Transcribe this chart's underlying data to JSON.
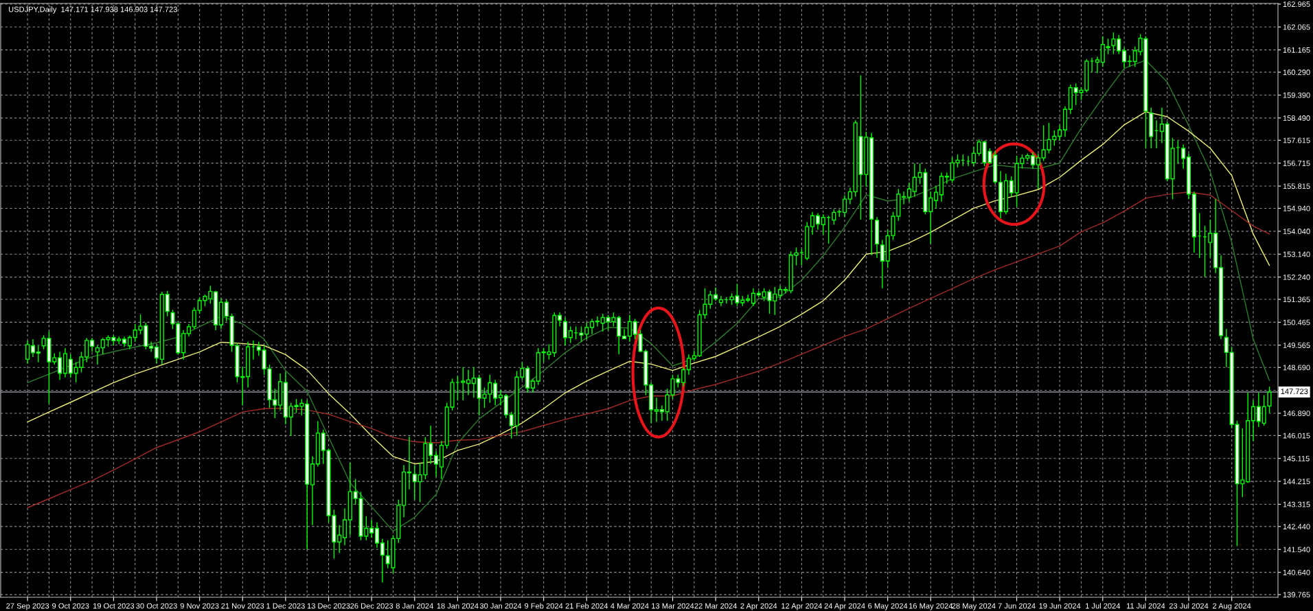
{
  "chart_data": {
    "type": "candlestick",
    "title": "USDJPY,Daily  147.171 147.938 146.903 147.723",
    "color": "#00ff00",
    "categories": [
      "27 Sep 2023",
      null,
      null,
      null,
      null,
      null,
      null,
      null,
      "9 Oct 2023",
      null,
      null,
      null,
      null,
      null,
      null,
      null,
      "19 Oct 2023",
      null,
      null,
      null,
      null,
      null,
      null,
      null,
      "30 Oct 2023",
      null,
      null,
      null,
      null,
      null,
      null,
      null,
      "9 Nov 2023",
      null,
      null,
      null,
      null,
      null,
      null,
      null,
      "21 Nov 2023",
      null,
      null,
      null,
      null,
      null,
      null,
      null,
      "1 Dec 2023",
      null,
      null,
      null,
      null,
      null,
      null,
      null,
      "13 Dec 2023",
      null,
      null,
      null,
      null,
      null,
      null,
      null,
      "26 Dec 2023",
      null,
      null,
      null,
      null,
      null,
      null,
      null,
      "8 Jan 2024",
      null,
      null,
      null,
      null,
      null,
      null,
      null,
      "18 Jan 2024",
      null,
      null,
      null,
      null,
      null,
      null,
      null,
      "30 Jan 2024",
      null,
      null,
      null,
      null,
      null,
      null,
      null,
      "9 Feb 2024",
      null,
      null,
      null,
      null,
      null,
      null,
      null,
      "21 Feb 2024",
      null,
      null,
      null,
      null,
      null,
      null,
      null,
      "4 Mar 2024",
      null,
      null,
      null,
      null,
      null,
      null,
      null,
      "13 Mar 2024",
      null,
      null,
      null,
      null,
      null,
      null,
      null,
      "22 Mar 2024",
      null,
      null,
      null,
      null,
      null,
      null,
      null,
      "2 Apr 2024",
      null,
      null,
      null,
      null,
      null,
      null,
      null,
      "12 Apr 2024",
      null,
      null,
      null,
      null,
      null,
      null,
      null,
      "24 Apr 2024",
      null,
      null,
      null,
      null,
      null,
      null,
      null,
      "6 May 2024",
      null,
      null,
      null,
      null,
      null,
      null,
      null,
      "16 May 2024",
      null,
      null,
      null,
      null,
      null,
      null,
      null,
      "28 May 2024",
      null,
      null,
      null,
      null,
      null,
      null,
      null,
      "7 Jun 2024",
      null,
      null,
      null,
      null,
      null,
      null,
      null,
      "19 Jun 2024",
      null,
      null,
      null,
      null,
      null,
      null,
      null,
      "1 Jul 2024",
      null,
      null,
      null,
      null,
      null,
      null,
      null,
      "11 Jul 2024",
      null,
      null,
      null,
      null,
      null,
      null,
      null,
      "23 Jul 2024",
      null,
      null,
      null,
      null,
      null,
      null,
      null,
      "2 Aug 2024",
      null,
      null,
      null,
      null,
      null,
      null,
      null
    ],
    "ohlc": [
      [
        149.01,
        149.75,
        148.85,
        149.59
      ],
      [
        149.54,
        149.8,
        149.1,
        149.27
      ],
      [
        149.3,
        149.55,
        148.9,
        149.25
      ],
      [
        149.54,
        149.95,
        149.4,
        149.83
      ],
      [
        149.83,
        150.1,
        147.27,
        148.91
      ],
      [
        148.91,
        149.25,
        148.8,
        149.07
      ],
      [
        149.07,
        149.3,
        148.2,
        148.46
      ],
      [
        148.46,
        149.45,
        148.3,
        149.23
      ],
      [
        149.01,
        149.2,
        148.3,
        148.46
      ],
      [
        148.46,
        148.9,
        148.1,
        148.69
      ],
      [
        148.69,
        149.3,
        148.5,
        149.1
      ],
      [
        149.1,
        149.85,
        148.9,
        149.75
      ],
      [
        149.75,
        149.85,
        149.3,
        149.52
      ],
      [
        149.3,
        149.55,
        148.8,
        149.46
      ],
      [
        149.46,
        149.85,
        149.2,
        149.78
      ],
      [
        149.78,
        149.95,
        149.5,
        149.86
      ],
      [
        149.86,
        149.95,
        149.55,
        149.74
      ],
      [
        149.74,
        149.9,
        149.6,
        149.8
      ],
      [
        149.8,
        149.9,
        149.5,
        149.64
      ],
      [
        149.54,
        149.95,
        149.4,
        149.87
      ],
      [
        149.87,
        150.4,
        149.7,
        150.16
      ],
      [
        150.16,
        150.77,
        150.0,
        150.31
      ],
      [
        150.33,
        150.45,
        149.4,
        149.52
      ],
      [
        149.52,
        149.7,
        149.3,
        149.45
      ],
      [
        149.49,
        149.6,
        148.85,
        149.06
      ],
      [
        149.01,
        151.66,
        148.8,
        151.56
      ],
      [
        151.56,
        151.7,
        150.7,
        150.89
      ],
      [
        150.84,
        150.95,
        150.2,
        150.4
      ],
      [
        150.4,
        150.5,
        149.2,
        149.27
      ],
      [
        149.27,
        150.15,
        149.0,
        150.02
      ],
      [
        150.02,
        150.4,
        149.9,
        150.29
      ],
      [
        150.29,
        151.05,
        150.2,
        150.93
      ],
      [
        150.93,
        151.45,
        150.8,
        151.32
      ],
      [
        151.32,
        151.55,
        151.1,
        151.48
      ],
      [
        151.39,
        151.9,
        151.2,
        151.68
      ],
      [
        151.66,
        151.7,
        150.15,
        150.36
      ],
      [
        150.36,
        151.4,
        150.2,
        151.25
      ],
      [
        151.25,
        151.35,
        150.5,
        150.7
      ],
      [
        150.7,
        150.8,
        149.3,
        149.56
      ],
      [
        149.54,
        149.65,
        148.1,
        148.33
      ],
      [
        148.33,
        148.7,
        147.2,
        148.3
      ],
      [
        148.33,
        149.7,
        147.9,
        149.5
      ],
      [
        149.5,
        149.75,
        149.0,
        149.5
      ],
      [
        149.5,
        149.7,
        149.15,
        149.37
      ],
      [
        149.37,
        149.55,
        148.4,
        148.63
      ],
      [
        148.63,
        148.8,
        147.1,
        147.42
      ],
      [
        147.42,
        147.85,
        146.7,
        147.21
      ],
      [
        147.21,
        148.45,
        147.0,
        148.13
      ],
      [
        148.1,
        148.5,
        146.45,
        146.74
      ],
      [
        146.74,
        147.3,
        146.0,
        147.16
      ],
      [
        147.2,
        147.45,
        146.9,
        147.15
      ],
      [
        147.16,
        147.45,
        146.8,
        147.28
      ],
      [
        147.25,
        147.4,
        141.54,
        144.1
      ],
      [
        144.08,
        145.2,
        142.5,
        144.9
      ],
      [
        144.9,
        146.58,
        144.8,
        146.11
      ],
      [
        146.11,
        146.25,
        144.9,
        145.43
      ],
      [
        145.43,
        145.5,
        142.6,
        142.87
      ],
      [
        142.87,
        143.1,
        141.18,
        141.83
      ],
      [
        141.83,
        142.5,
        141.4,
        142.1
      ],
      [
        142.0,
        143.15,
        141.7,
        142.7
      ],
      [
        142.7,
        144.95,
        142.1,
        143.81
      ],
      [
        143.81,
        144.3,
        143.3,
        143.54
      ],
      [
        143.54,
        143.8,
        141.9,
        142.06
      ],
      [
        142.06,
        142.85,
        141.9,
        142.37
      ],
      [
        142.37,
        142.7,
        142.0,
        142.19
      ],
      [
        142.37,
        142.6,
        141.6,
        141.79
      ],
      [
        141.79,
        141.95,
        140.24,
        141.32
      ],
      [
        141.29,
        141.9,
        140.8,
        140.98
      ],
      [
        140.82,
        142.1,
        140.6,
        141.97
      ],
      [
        141.97,
        143.5,
        141.8,
        143.27
      ],
      [
        143.27,
        144.85,
        142.8,
        144.58
      ],
      [
        144.58,
        145.98,
        143.9,
        144.55
      ],
      [
        144.49,
        144.85,
        143.5,
        144.2
      ],
      [
        144.2,
        144.95,
        143.4,
        144.47
      ],
      [
        144.47,
        145.95,
        144.3,
        145.7
      ],
      [
        145.7,
        146.4,
        144.9,
        145.23
      ],
      [
        145.23,
        145.4,
        144.4,
        144.89
      ],
      [
        144.78,
        145.8,
        144.3,
        145.63
      ],
      [
        145.63,
        147.3,
        145.5,
        147.13
      ],
      [
        147.13,
        148.25,
        147.0,
        148.1
      ],
      [
        148.1,
        148.35,
        147.4,
        148.1
      ],
      [
        148.1,
        148.7,
        147.4,
        148.15
      ],
      [
        148.06,
        148.6,
        147.6,
        148.2
      ],
      [
        148.06,
        148.7,
        147.5,
        148.27
      ],
      [
        148.27,
        148.4,
        146.8,
        147.48
      ],
      [
        147.48,
        147.9,
        147.1,
        147.64
      ],
      [
        147.64,
        148.4,
        147.3,
        148.09
      ],
      [
        148.06,
        148.2,
        147.2,
        147.48
      ],
      [
        147.5,
        147.8,
        147.2,
        147.6
      ],
      [
        147.58,
        147.65,
        146.7,
        146.83
      ],
      [
        146.83,
        146.95,
        145.9,
        146.4
      ],
      [
        146.4,
        148.55,
        146.0,
        148.31
      ],
      [
        148.31,
        148.9,
        148.2,
        148.65
      ],
      [
        148.65,
        148.75,
        147.7,
        147.88
      ],
      [
        147.88,
        148.25,
        147.7,
        148.15
      ],
      [
        148.15,
        149.45,
        148.0,
        149.27
      ],
      [
        149.27,
        149.45,
        148.9,
        149.3
      ],
      [
        149.2,
        149.6,
        149.0,
        149.3
      ],
      [
        149.27,
        150.85,
        149.1,
        150.73
      ],
      [
        150.73,
        150.85,
        150.3,
        150.55
      ],
      [
        150.49,
        150.65,
        149.55,
        149.86
      ],
      [
        149.86,
        150.3,
        149.65,
        150.13
      ],
      [
        150.05,
        150.3,
        149.8,
        150.05
      ],
      [
        150.04,
        150.3,
        149.7,
        149.96
      ],
      [
        150.0,
        150.45,
        149.8,
        150.26
      ],
      [
        150.26,
        150.6,
        150.0,
        150.49
      ],
      [
        150.49,
        150.7,
        150.3,
        150.51
      ],
      [
        150.43,
        150.8,
        150.1,
        150.65
      ],
      [
        150.65,
        150.75,
        150.15,
        150.49
      ],
      [
        150.49,
        150.85,
        150.3,
        150.65
      ],
      [
        150.65,
        150.72,
        149.2,
        149.92
      ],
      [
        149.92,
        150.2,
        149.8,
        149.82
      ],
      [
        149.92,
        150.75,
        149.7,
        150.49
      ],
      [
        150.49,
        150.6,
        149.8,
        149.99
      ],
      [
        150.0,
        150.15,
        149.3,
        149.32
      ],
      [
        149.32,
        149.4,
        147.6,
        148.0
      ],
      [
        148.0,
        148.1,
        146.5,
        147.03
      ],
      [
        146.97,
        147.5,
        146.55,
        147.03
      ],
      [
        147.03,
        147.2,
        146.6,
        146.95
      ],
      [
        146.95,
        147.85,
        146.6,
        147.61
      ],
      [
        147.61,
        148.4,
        147.45,
        148.24
      ],
      [
        148.24,
        148.4,
        147.9,
        148.1
      ],
      [
        148.1,
        148.7,
        147.95,
        148.6
      ],
      [
        148.6,
        149.2,
        148.4,
        149.05
      ],
      [
        149.05,
        149.35,
        148.95,
        149.15
      ],
      [
        149.15,
        150.95,
        149.1,
        150.76
      ],
      [
        150.76,
        151.8,
        150.6,
        151.17
      ],
      [
        151.17,
        151.7,
        151.0,
        151.54
      ],
      [
        151.54,
        151.83,
        151.3,
        151.39
      ],
      [
        151.24,
        151.5,
        151.1,
        151.35
      ],
      [
        151.35,
        151.45,
        151.2,
        151.35
      ],
      [
        151.35,
        151.6,
        151.15,
        151.46
      ],
      [
        151.5,
        151.97,
        151.1,
        151.23
      ],
      [
        151.23,
        151.5,
        151.1,
        151.33
      ],
      [
        151.33,
        151.55,
        151.25,
        151.38
      ],
      [
        151.21,
        151.8,
        151.1,
        151.6
      ],
      [
        151.6,
        151.7,
        151.45,
        151.54
      ],
      [
        151.45,
        151.8,
        151.3,
        151.66
      ],
      [
        151.66,
        151.75,
        150.8,
        151.32
      ],
      [
        151.3,
        151.85,
        150.75,
        151.57
      ],
      [
        151.52,
        151.9,
        151.4,
        151.75
      ],
      [
        151.72,
        151.85,
        151.6,
        151.75
      ],
      [
        151.7,
        153.25,
        151.6,
        153.1
      ],
      [
        153.1,
        153.4,
        152.7,
        153.19
      ],
      [
        153.2,
        153.35,
        152.7,
        153.2
      ],
      [
        152.98,
        154.4,
        152.9,
        154.22
      ],
      [
        154.22,
        154.8,
        153.9,
        154.65
      ],
      [
        154.65,
        154.75,
        154.1,
        154.33
      ],
      [
        154.3,
        154.7,
        153.9,
        154.58
      ],
      [
        154.58,
        154.65,
        153.55,
        154.58
      ],
      [
        154.48,
        154.9,
        154.3,
        154.78
      ],
      [
        154.8,
        154.9,
        154.6,
        154.81
      ],
      [
        154.78,
        155.45,
        154.6,
        155.3
      ],
      [
        155.3,
        155.75,
        155.1,
        155.59
      ],
      [
        155.59,
        158.4,
        155.4,
        158.3
      ],
      [
        157.76,
        160.16,
        154.5,
        156.27
      ],
      [
        156.27,
        157.95,
        155.8,
        157.73
      ],
      [
        157.71,
        157.9,
        153.1,
        154.51
      ],
      [
        154.47,
        154.6,
        153.0,
        153.54
      ],
      [
        153.5,
        153.7,
        151.8,
        152.87
      ],
      [
        152.87,
        154.1,
        152.6,
        153.86
      ],
      [
        153.87,
        154.8,
        153.7,
        154.63
      ],
      [
        154.63,
        155.7,
        154.45,
        155.5
      ],
      [
        155.4,
        155.6,
        155.1,
        155.38
      ],
      [
        155.38,
        155.95,
        155.2,
        155.7
      ],
      [
        155.6,
        156.7,
        155.4,
        156.16
      ],
      [
        156.16,
        156.7,
        155.9,
        156.34
      ],
      [
        156.34,
        156.5,
        154.7,
        154.81
      ],
      [
        154.81,
        155.6,
        153.55,
        155.35
      ],
      [
        155.25,
        155.8,
        154.95,
        155.57
      ],
      [
        155.47,
        156.35,
        155.2,
        156.2
      ],
      [
        156.2,
        156.35,
        155.9,
        156.17
      ],
      [
        156.06,
        156.95,
        155.95,
        156.73
      ],
      [
        156.73,
        157.05,
        156.55,
        156.83
      ],
      [
        156.83,
        157.05,
        156.6,
        156.83
      ],
      [
        156.79,
        157.0,
        156.6,
        156.79
      ],
      [
        156.74,
        157.35,
        156.6,
        157.1
      ],
      [
        157.1,
        157.65,
        157.0,
        157.55
      ],
      [
        157.55,
        157.6,
        156.6,
        156.74
      ],
      [
        157.18,
        157.3,
        156.7,
        156.74
      ],
      [
        157.03,
        157.2,
        155.9,
        155.98
      ],
      [
        155.96,
        156.4,
        154.55,
        154.81
      ],
      [
        154.81,
        156.3,
        154.7,
        156.02
      ],
      [
        156.02,
        156.2,
        155.4,
        155.55
      ],
      [
        155.55,
        157.0,
        155.0,
        156.7
      ],
      [
        156.7,
        157.05,
        156.5,
        156.91
      ],
      [
        156.91,
        157.1,
        156.8,
        157.01
      ],
      [
        157.01,
        157.15,
        156.5,
        156.65
      ],
      [
        156.65,
        157.1,
        155.7,
        156.92
      ],
      [
        156.92,
        158.2,
        156.8,
        157.24
      ],
      [
        157.24,
        158.3,
        157.1,
        157.64
      ],
      [
        157.64,
        158.0,
        157.4,
        157.77
      ],
      [
        157.77,
        158.2,
        157.6,
        158.02
      ],
      [
        158.02,
        158.95,
        157.75,
        158.83
      ],
      [
        158.83,
        159.8,
        158.65,
        159.68
      ],
      [
        159.68,
        159.85,
        159.0,
        159.49
      ],
      [
        159.49,
        159.7,
        159.2,
        159.58
      ],
      [
        159.58,
        160.8,
        159.5,
        160.72
      ],
      [
        160.72,
        160.85,
        160.3,
        160.72
      ],
      [
        160.68,
        160.9,
        160.25,
        160.77
      ],
      [
        160.68,
        161.7,
        160.5,
        161.38
      ],
      [
        161.25,
        161.6,
        161.0,
        161.29
      ],
      [
        161.33,
        161.85,
        161.0,
        161.59
      ],
      [
        161.59,
        161.75,
        161.0,
        161.13
      ],
      [
        161.13,
        161.25,
        160.45,
        160.7
      ],
      [
        160.71,
        160.95,
        160.5,
        160.72
      ],
      [
        160.71,
        161.3,
        160.5,
        161.13
      ],
      [
        161.1,
        161.78,
        160.95,
        161.62
      ],
      [
        161.6,
        161.7,
        157.3,
        158.76
      ],
      [
        158.68,
        158.9,
        157.3,
        157.76
      ],
      [
        157.99,
        158.4,
        157.3,
        157.99
      ],
      [
        157.96,
        158.9,
        157.5,
        158.25
      ],
      [
        158.25,
        158.35,
        156.0,
        156.1
      ],
      [
        156.1,
        157.7,
        155.3,
        157.3
      ],
      [
        157.33,
        157.6,
        156.7,
        157.33
      ],
      [
        157.3,
        157.45,
        156.5,
        156.9
      ],
      [
        156.96,
        157.1,
        155.3,
        155.5
      ],
      [
        155.5,
        155.6,
        153.2,
        153.82
      ],
      [
        153.85,
        154.75,
        153.0,
        153.85
      ],
      [
        153.82,
        154.25,
        152.25,
        153.82
      ],
      [
        153.6,
        154.5,
        153.0,
        153.96
      ],
      [
        153.96,
        155.3,
        152.4,
        152.61
      ],
      [
        152.61,
        153.1,
        149.8,
        149.94
      ],
      [
        149.87,
        150.2,
        148.7,
        149.28
      ],
      [
        149.28,
        149.5,
        146.3,
        146.45
      ],
      [
        146.45,
        146.6,
        141.67,
        144.12
      ],
      [
        144.12,
        146.3,
        143.6,
        144.27
      ],
      [
        144.2,
        147.7,
        144.15,
        146.6
      ],
      [
        146.6,
        147.4,
        145.8,
        147.15
      ],
      [
        147.15,
        147.7,
        146.35,
        146.57
      ],
      [
        146.5,
        147.6,
        146.4,
        147.15
      ],
      [
        147.171,
        147.938,
        146.903,
        147.723
      ]
    ],
    "series": [
      {
        "type": "line",
        "color": "#2f7d2f",
        "values": [
          148.09,
          null,
          null,
          null,
          148.43,
          null,
          null,
          null,
          148.77,
          null,
          null,
          null,
          149.11,
          null,
          null,
          null,
          149.31,
          null,
          null,
          null,
          149.49,
          null,
          null,
          null,
          149.66,
          null,
          null,
          null,
          149.88,
          null,
          null,
          null,
          150.29,
          null,
          null,
          null,
          150.7,
          null,
          null,
          null,
          150.4,
          null,
          null,
          null,
          149.8,
          null,
          null,
          null,
          148.56,
          null,
          null,
          null,
          147.75,
          null,
          null,
          null,
          145.95,
          null,
          null,
          null,
          144.15,
          null,
          null,
          null,
          143.21,
          null,
          null,
          null,
          142.26,
          null,
          null,
          null,
          142.8,
          null,
          null,
          null,
          143.7,
          null,
          null,
          null,
          145.7,
          null,
          null,
          null,
          146.67,
          null,
          null,
          null,
          147.29,
          null,
          null,
          null,
          147.91,
          null,
          null,
          null,
          148.56,
          null,
          null,
          null,
          149.27,
          null,
          null,
          null,
          149.85,
          null,
          null,
          null,
          150.26,
          null,
          null,
          null,
          150.24,
          null,
          null,
          null,
          149.63,
          null,
          null,
          null,
          148.75,
          null,
          null,
          null,
          149.04,
          null,
          null,
          null,
          149.69,
          null,
          null,
          null,
          150.42,
          null,
          null,
          null,
          151.39,
          null,
          null,
          null,
          151.46,
          null,
          null,
          null,
          152.12,
          null,
          null,
          null,
          153.08,
          null,
          null,
          null,
          154.2,
          null,
          null,
          null,
          155.47,
          null,
          null,
          null,
          155.23,
          null,
          null,
          null,
          155.34,
          null,
          null,
          null,
          155.69,
          null,
          null,
          null,
          156.1,
          null,
          null,
          null,
          156.38,
          null,
          null,
          null,
          156.65,
          null,
          null,
          null,
          156.55,
          null,
          null,
          null,
          156.5,
          null,
          null,
          null,
          156.72,
          null,
          null,
          null,
          158.09,
          null,
          null,
          null,
          159.3,
          null,
          null,
          null,
          160.44,
          null,
          null,
          null,
          160.76,
          null,
          null,
          null,
          159.9,
          null,
          null,
          null,
          158.19,
          null,
          null,
          null,
          156.38,
          null,
          null,
          null,
          153.6,
          null,
          null,
          null,
          149.8,
          null,
          null,
          148.18
        ]
      },
      {
        "type": "line",
        "color": "#f0f07a",
        "values": [
          146.55,
          null,
          null,
          null,
          146.94,
          null,
          null,
          null,
          147.32,
          null,
          null,
          null,
          147.71,
          null,
          null,
          null,
          148.09,
          null,
          null,
          null,
          148.43,
          null,
          null,
          null,
          148.72,
          null,
          null,
          null,
          149.01,
          null,
          null,
          null,
          149.3,
          null,
          null,
          null,
          149.68,
          null,
          null,
          null,
          149.63,
          null,
          null,
          null,
          149.55,
          null,
          null,
          null,
          149.19,
          null,
          null,
          null,
          148.59,
          null,
          null,
          null,
          147.66,
          null,
          null,
          null,
          146.87,
          null,
          null,
          null,
          145.99,
          null,
          null,
          null,
          145.19,
          null,
          null,
          null,
          144.9,
          null,
          null,
          null,
          145.0,
          null,
          null,
          null,
          145.43,
          null,
          null,
          null,
          145.68,
          null,
          null,
          null,
          146.07,
          null,
          null,
          null,
          146.51,
          null,
          null,
          null,
          147.07,
          null,
          null,
          null,
          147.69,
          null,
          null,
          null,
          148.15,
          null,
          null,
          null,
          148.55,
          null,
          null,
          null,
          148.93,
          null,
          null,
          null,
          148.82,
          null,
          null,
          null,
          148.57,
          null,
          null,
          null,
          148.86,
          null,
          null,
          null,
          149.12,
          null,
          null,
          null,
          149.5,
          null,
          null,
          null,
          149.89,
          null,
          null,
          null,
          150.3,
          null,
          null,
          null,
          150.78,
          null,
          null,
          null,
          151.31,
          null,
          null,
          null,
          152.12,
          null,
          null,
          null,
          153.14,
          null,
          null,
          null,
          153.25,
          null,
          null,
          null,
          153.59,
          null,
          null,
          null,
          154.0,
          null,
          null,
          null,
          154.47,
          null,
          null,
          null,
          154.94,
          null,
          null,
          null,
          155.24,
          null,
          null,
          null,
          155.44,
          null,
          null,
          null,
          155.68,
          null,
          null,
          null,
          156.16,
          null,
          null,
          null,
          156.83,
          null,
          null,
          null,
          157.45,
          null,
          null,
          null,
          158.22,
          null,
          null,
          null,
          158.73,
          null,
          null,
          null,
          158.54,
          null,
          null,
          null,
          157.97,
          null,
          null,
          null,
          157.3,
          null,
          null,
          null,
          156.23,
          null,
          null,
          null,
          153.93,
          null,
          null,
          152.7
        ]
      },
      {
        "type": "line",
        "color": "#a32a2a",
        "values": [
          143.18,
          null,
          null,
          null,
          143.53,
          null,
          null,
          null,
          143.89,
          null,
          null,
          null,
          144.24,
          null,
          null,
          null,
          144.66,
          null,
          null,
          null,
          145.1,
          null,
          null,
          null,
          145.54,
          null,
          null,
          null,
          145.85,
          null,
          null,
          null,
          146.16,
          null,
          null,
          null,
          146.55,
          null,
          null,
          null,
          146.94,
          null,
          null,
          null,
          147.07,
          null,
          null,
          null,
          147.09,
          null,
          null,
          null,
          147.02,
          null,
          null,
          null,
          146.85,
          null,
          null,
          null,
          146.56,
          null,
          null,
          null,
          146.29,
          null,
          null,
          null,
          145.94,
          null,
          null,
          null,
          145.77,
          null,
          null,
          null,
          145.73,
          null,
          null,
          null,
          145.83,
          null,
          null,
          null,
          145.86,
          null,
          null,
          null,
          146.02,
          null,
          null,
          null,
          146.17,
          null,
          null,
          null,
          146.41,
          null,
          null,
          null,
          146.65,
          null,
          null,
          null,
          146.86,
          null,
          null,
          null,
          147.07,
          null,
          null,
          null,
          147.39,
          null,
          null,
          null,
          147.57,
          null,
          null,
          null,
          147.57,
          null,
          null,
          null,
          147.82,
          null,
          null,
          null,
          148.02,
          null,
          null,
          null,
          148.28,
          null,
          null,
          null,
          148.54,
          null,
          null,
          null,
          148.86,
          null,
          null,
          null,
          149.21,
          null,
          null,
          null,
          149.56,
          null,
          null,
          null,
          149.91,
          null,
          null,
          null,
          150.2,
          null,
          null,
          null,
          150.61,
          null,
          null,
          null,
          151.01,
          null,
          null,
          null,
          151.4,
          null,
          null,
          null,
          151.79,
          null,
          null,
          null,
          152.18,
          null,
          null,
          null,
          152.53,
          null,
          null,
          null,
          152.84,
          null,
          null,
          null,
          153.15,
          null,
          null,
          null,
          153.46,
          null,
          null,
          null,
          154.02,
          null,
          null,
          null,
          154.37,
          null,
          null,
          null,
          154.83,
          null,
          null,
          null,
          155.34,
          null,
          null,
          null,
          155.49,
          null,
          null,
          null,
          155.58,
          null,
          null,
          null,
          155.46,
          null,
          null,
          null,
          154.85,
          null,
          null,
          null,
          154.24,
          null,
          null,
          153.93
        ]
      }
    ],
    "ylim": [
      139.66,
      162.99
    ],
    "yticks": [
      162.965,
      162.065,
      161.165,
      {
        "value": 160.29,
        "label": "160.290"
      },
      {
        "value": 159.39,
        "label": "159.390"
      },
      {
        "value": 158.49,
        "label": "158.490"
      },
      157.615,
      156.715,
      155.815,
      {
        "value": 154.94,
        "label": "154.940"
      },
      {
        "value": 154.04,
        "label": "154.040"
      },
      {
        "value": 153.14,
        "label": "153.140"
      },
      {
        "value": 152.24,
        "label": "152.240"
      },
      151.365,
      150.465,
      149.565,
      {
        "value": 148.69,
        "label": "148.690"
      },
      {
        "value": 147.79,
        "label": null
      },
      {
        "value": 146.89,
        "label": "146.890"
      },
      146.015,
      145.115,
      144.215,
      143.315,
      {
        "value": 142.44,
        "label": "142.440"
      },
      {
        "value": 141.54,
        "label": "141.540"
      },
      {
        "value": 140.64,
        "label": "140.640"
      },
      139.765
    ],
    "grid": true,
    "ref_lines": [
      {
        "axis": "y",
        "value": 147.723,
        "label": "147.723",
        "color": "#8c93a0"
      }
    ]
  }
}
